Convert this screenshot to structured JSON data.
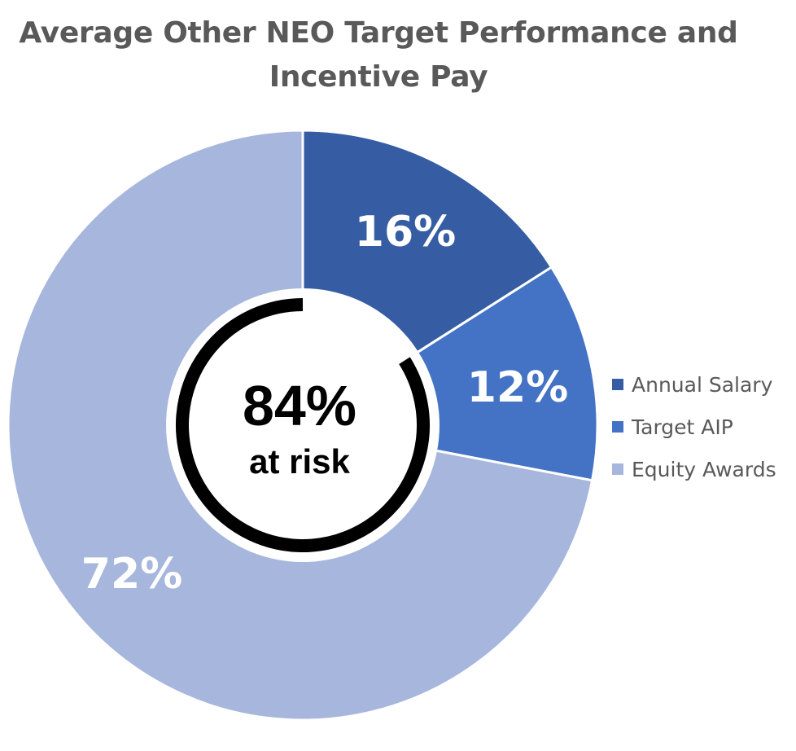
{
  "chart_data": {
    "type": "pie",
    "variant": "donut",
    "title_lines": [
      "Average Other NEO Target Performance and",
      "Incentive Pay"
    ],
    "categories": [
      "Annual Salary",
      "Target AIP",
      "Equity Awards"
    ],
    "values": [
      16,
      12,
      72
    ],
    "data_labels": [
      "16%",
      "12%",
      "72%"
    ],
    "colors": [
      "#365DA3",
      "#4472C4",
      "#A7B6DC"
    ],
    "center_value": "84%",
    "center_caption": "at risk",
    "center_ring_fraction": 84,
    "legend_position": "right"
  }
}
